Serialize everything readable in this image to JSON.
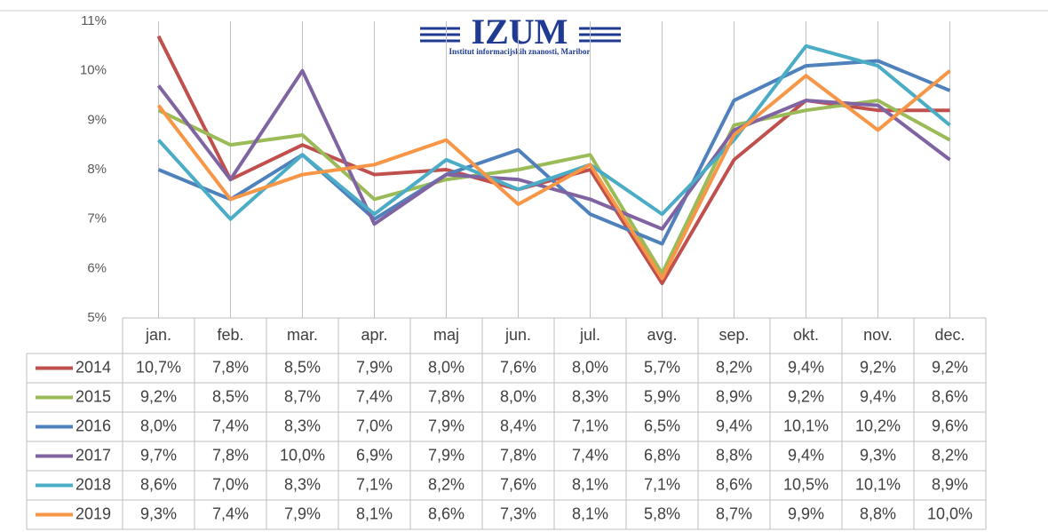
{
  "chart_data": {
    "type": "line",
    "annotations": [
      "IZUM",
      "Institut informacijskih znanosti, Maribor"
    ],
    "categories": [
      "jan.",
      "feb.",
      "mar.",
      "apr.",
      "maj",
      "jun.",
      "jul.",
      "avg.",
      "sep.",
      "okt.",
      "nov.",
      "dec."
    ],
    "series": [
      {
        "name": "2014",
        "color": "#c0504d",
        "values": [
          10.7,
          7.8,
          8.5,
          7.9,
          8.0,
          7.6,
          8.0,
          5.7,
          8.2,
          9.4,
          9.2,
          9.2
        ],
        "value_labels": [
          "10,7%",
          "7,8%",
          "8,5%",
          "7,9%",
          "8,0%",
          "7,6%",
          "8,0%",
          "5,7%",
          "8,2%",
          "9,4%",
          "9,2%",
          "9,2%"
        ]
      },
      {
        "name": "2015",
        "color": "#9bbb59",
        "values": [
          9.2,
          8.5,
          8.7,
          7.4,
          7.8,
          8.0,
          8.3,
          5.9,
          8.9,
          9.2,
          9.4,
          8.6
        ],
        "value_labels": [
          "9,2%",
          "8,5%",
          "8,7%",
          "7,4%",
          "7,8%",
          "8,0%",
          "8,3%",
          "5,9%",
          "8,9%",
          "9,2%",
          "9,4%",
          "8,6%"
        ]
      },
      {
        "name": "2016",
        "color": "#4f81bd",
        "values": [
          8.0,
          7.4,
          8.3,
          7.0,
          7.9,
          8.4,
          7.1,
          6.5,
          9.4,
          10.1,
          10.2,
          9.6
        ],
        "value_labels": [
          "8,0%",
          "7,4%",
          "8,3%",
          "7,0%",
          "7,9%",
          "8,4%",
          "7,1%",
          "6,5%",
          "9,4%",
          "10,1%",
          "10,2%",
          "9,6%"
        ]
      },
      {
        "name": "2017",
        "color": "#8064a2",
        "values": [
          9.7,
          7.8,
          10.0,
          6.9,
          7.9,
          7.8,
          7.4,
          6.8,
          8.8,
          9.4,
          9.3,
          8.2
        ],
        "value_labels": [
          "9,7%",
          "7,8%",
          "10,0%",
          "6,9%",
          "7,9%",
          "7,8%",
          "7,4%",
          "6,8%",
          "8,8%",
          "9,4%",
          "9,3%",
          "8,2%"
        ]
      },
      {
        "name": "2018",
        "color": "#4bacc6",
        "values": [
          8.6,
          7.0,
          8.3,
          7.1,
          8.2,
          7.6,
          8.1,
          7.1,
          8.6,
          10.5,
          10.1,
          8.9
        ],
        "value_labels": [
          "8,6%",
          "7,0%",
          "8,3%",
          "7,1%",
          "8,2%",
          "7,6%",
          "8,1%",
          "7,1%",
          "8,6%",
          "10,5%",
          "10,1%",
          "8,9%"
        ]
      },
      {
        "name": "2019",
        "color": "#f79646",
        "values": [
          9.3,
          7.4,
          7.9,
          8.1,
          8.6,
          7.3,
          8.1,
          5.8,
          8.7,
          9.9,
          8.8,
          10.0
        ],
        "value_labels": [
          "9,3%",
          "7,4%",
          "7,9%",
          "8,1%",
          "8,6%",
          "7,3%",
          "8,1%",
          "5,8%",
          "8,7%",
          "9,9%",
          "8,8%",
          "10,0%"
        ]
      }
    ],
    "ylim": [
      5,
      11
    ],
    "yticks": [
      {
        "value": 5,
        "label": "5%"
      },
      {
        "value": 6,
        "label": "6%"
      },
      {
        "value": 7,
        "label": "7%"
      },
      {
        "value": 8,
        "label": "8%"
      },
      {
        "value": 9,
        "label": "9%"
      },
      {
        "value": 10,
        "label": "10%"
      },
      {
        "value": 11,
        "label": "11%"
      }
    ],
    "grid": false
  }
}
